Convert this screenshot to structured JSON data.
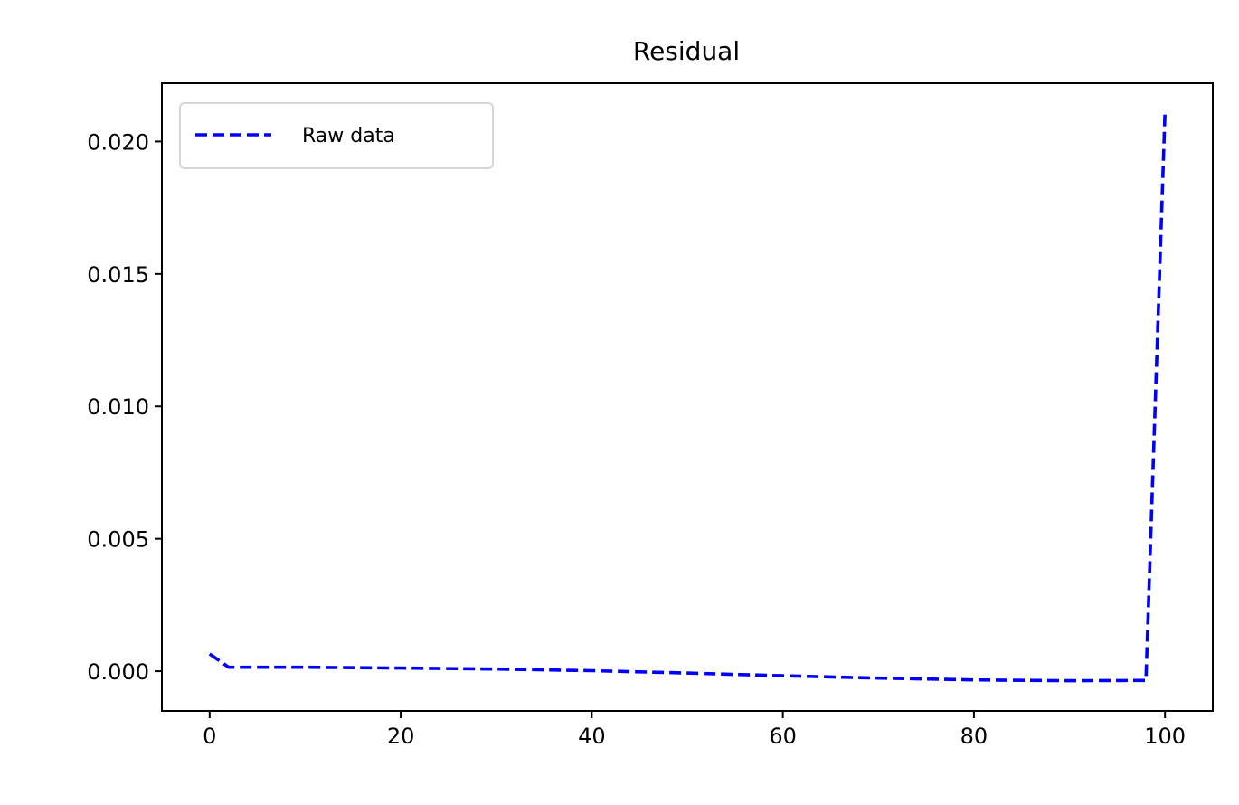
{
  "chart_data": {
    "type": "line",
    "title": "Residual",
    "xlabel": "",
    "ylabel": "",
    "xlim": [
      -5,
      105
    ],
    "ylim": [
      -0.0015,
      0.0222
    ],
    "xticks": [
      0,
      20,
      40,
      60,
      80,
      100
    ],
    "xtick_labels": [
      "0",
      "20",
      "40",
      "60",
      "80",
      "100"
    ],
    "yticks": [
      0.0,
      0.005,
      0.01,
      0.015,
      0.02
    ],
    "ytick_labels": [
      "0.000",
      "0.005",
      "0.010",
      "0.015",
      "0.020"
    ],
    "grid": false,
    "legend_position": "top-left",
    "series": [
      {
        "name": "Raw data",
        "color": "#0000ff",
        "linestyle": "dashed",
        "x": [
          0,
          2,
          10,
          20,
          30,
          40,
          50,
          60,
          70,
          80,
          90,
          98,
          100
        ],
        "y": [
          0.00065,
          0.00015,
          0.00015,
          0.00012,
          8e-05,
          2e-05,
          -7e-05,
          -0.00017,
          -0.00026,
          -0.00033,
          -0.00036,
          -0.00035,
          0.0211
        ]
      }
    ]
  }
}
